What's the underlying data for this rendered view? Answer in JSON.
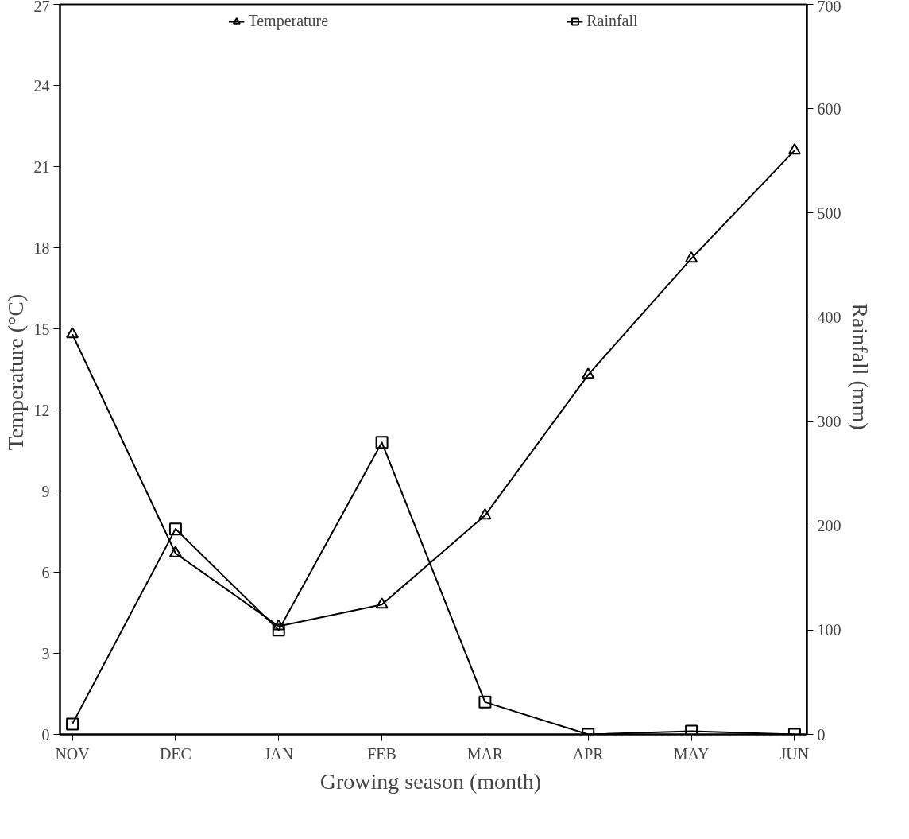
{
  "chart_data": {
    "type": "line",
    "xlabel": "Growing season  (month)",
    "ylabel": "Temperature  (°C)",
    "y2label": "Rainfall  (mm)",
    "categories": [
      "NOV",
      "DEC",
      "JAN",
      "FEB",
      "MAR",
      "APR",
      "MAY",
      "JUN"
    ],
    "series": [
      {
        "name": "Temperature",
        "color": "#000000",
        "marker": "triangle",
        "values": [
          14.8,
          6.7,
          4.0,
          4.8,
          8.1,
          13.3,
          17.6,
          21.6
        ]
      },
      {
        "name": "Rainfall",
        "color": "#000000",
        "marker": "square",
        "axis": "y2",
        "values": [
          10,
          197,
          100,
          280,
          31,
          0,
          3,
          0
        ]
      }
    ],
    "ylim": [
      0,
      27
    ],
    "yticks": [
      0,
      3,
      6,
      9,
      12,
      15,
      18,
      21,
      24,
      27
    ],
    "y2lim": [
      0,
      700
    ],
    "y2ticks": [
      0,
      100,
      200,
      300,
      400,
      500,
      600,
      700
    ],
    "grid": false,
    "legend": "top",
    "line_style": "solid"
  }
}
